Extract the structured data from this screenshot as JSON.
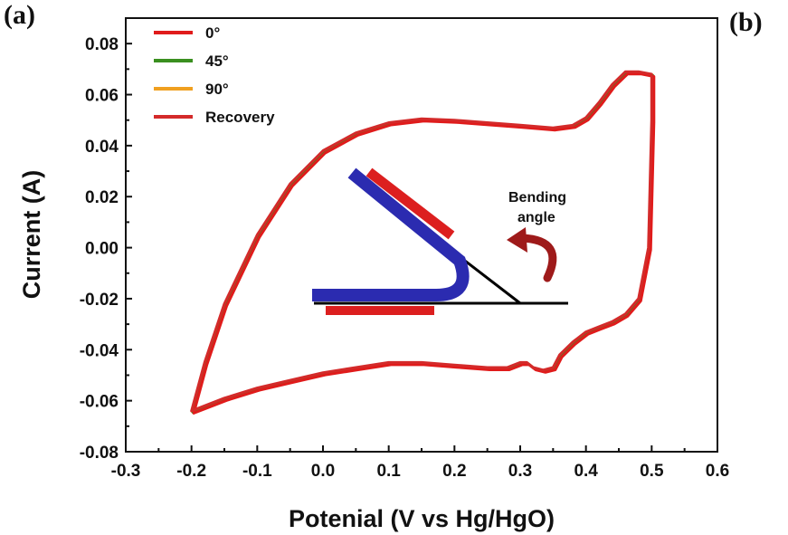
{
  "panel_labels": {
    "a": "(a)",
    "b": "(b)"
  },
  "chart_data": {
    "type": "line",
    "title": "",
    "xlabel": "Potenial (V vs Hg/HgO)",
    "ylabel": "Current (A)",
    "xlim": [
      -0.3,
      0.6
    ],
    "ylim": [
      -0.08,
      0.09
    ],
    "xticks": [
      -0.3,
      -0.2,
      -0.1,
      0.0,
      0.1,
      0.2,
      0.3,
      0.4,
      0.5,
      0.6
    ],
    "xtick_labels": [
      "-0.3",
      "-0.2",
      "-0.1",
      "0.0",
      "0.1",
      "0.2",
      "0.3",
      "0.4",
      "0.5",
      "0.6"
    ],
    "yticks": [
      -0.08,
      -0.06,
      -0.04,
      -0.02,
      0.0,
      0.02,
      0.04,
      0.06,
      0.08
    ],
    "ytick_labels": [
      "-0.08",
      "-0.06",
      "-0.04",
      "-0.02",
      "0.00",
      "0.02",
      "0.04",
      "0.06",
      "0.08"
    ],
    "legend_position": "top-left",
    "cv_curve": {
      "x": [
        -0.2,
        -0.18,
        -0.15,
        -0.1,
        -0.05,
        0.0,
        0.05,
        0.1,
        0.15,
        0.2,
        0.25,
        0.3,
        0.35,
        0.38,
        0.4,
        0.42,
        0.44,
        0.46,
        0.48,
        0.5,
        0.5,
        0.495,
        0.48,
        0.46,
        0.44,
        0.42,
        0.4,
        0.38,
        0.36,
        0.35,
        0.335,
        0.32,
        0.31,
        0.3,
        0.28,
        0.25,
        0.2,
        0.15,
        0.1,
        0.05,
        0.0,
        -0.05,
        -0.1,
        -0.15,
        -0.2
      ],
      "y": [
        -0.064,
        -0.045,
        -0.022,
        0.005,
        0.025,
        0.038,
        0.045,
        0.049,
        0.0505,
        0.05,
        0.049,
        0.048,
        0.047,
        0.048,
        0.051,
        0.057,
        0.064,
        0.069,
        0.069,
        0.068,
        0.05,
        0.0,
        -0.02,
        -0.026,
        -0.029,
        -0.031,
        -0.033,
        -0.037,
        -0.042,
        -0.047,
        -0.048,
        -0.047,
        -0.045,
        -0.045,
        -0.047,
        -0.047,
        -0.046,
        -0.045,
        -0.045,
        -0.047,
        -0.049,
        -0.052,
        -0.055,
        -0.059,
        -0.064
      ]
    },
    "series": [
      {
        "name": "0°",
        "color": "#e01b1b"
      },
      {
        "name": "45°",
        "color": "#3a8f1f"
      },
      {
        "name": "90°",
        "color": "#f0a020"
      },
      {
        "name": "Recovery",
        "color": "#d42a2a"
      }
    ],
    "inset": {
      "annotation": [
        "Bending",
        "angle"
      ],
      "colors": {
        "strip": "#2b2bb0",
        "electrode": "#dc1f1f",
        "line": "#000000",
        "arrow": "#9e1a1a"
      }
    }
  }
}
